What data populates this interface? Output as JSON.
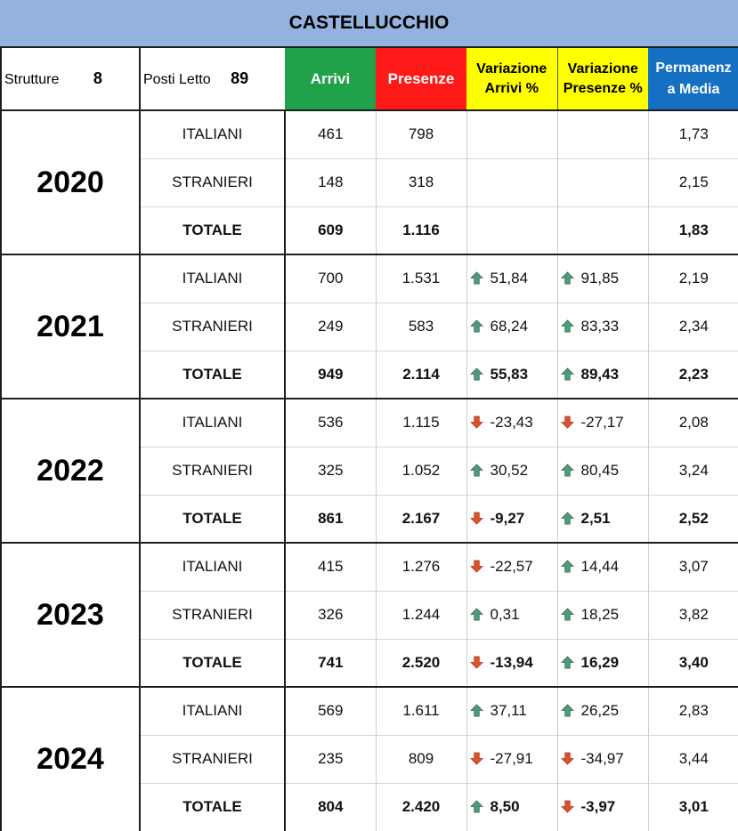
{
  "title": "CASTELLUCCHIO",
  "header": {
    "strutture_label": "Strutture",
    "strutture_value": "8",
    "posti_label": "Posti Letto",
    "posti_value": "89",
    "arrivi": "Arrivi",
    "presenze": "Presenze",
    "var_arrivi_1": "Variazione",
    "var_arrivi_2": "Arrivi %",
    "var_presenze_1": "Variazione",
    "var_presenze_2": "Presenze %",
    "perm_1": "Permanenz",
    "perm_2": "a Media"
  },
  "colors": {
    "up": "#4f9a78",
    "down": "#d9532b",
    "arrivi_bg": "#20a24a",
    "presenze_bg": "#ff1a1a",
    "variazione_bg": "#ffff00",
    "permanenza_bg": "#1570c4",
    "title_bg": "#93b3de"
  },
  "years": [
    {
      "year": "2020",
      "rows": [
        {
          "label": "ITALIANI",
          "arrivi": "461",
          "presenze": "798",
          "var_arrivi": "",
          "var_arrivi_dir": "",
          "var_presenze": "",
          "var_presenze_dir": "",
          "permanenza": "1,73"
        },
        {
          "label": "STRANIERI",
          "arrivi": "148",
          "presenze": "318",
          "var_arrivi": "",
          "var_arrivi_dir": "",
          "var_presenze": "",
          "var_presenze_dir": "",
          "permanenza": "2,15"
        },
        {
          "label": "TOTALE",
          "arrivi": "609",
          "presenze": "1.116",
          "var_arrivi": "",
          "var_arrivi_dir": "",
          "var_presenze": "",
          "var_presenze_dir": "",
          "permanenza": "1,83"
        }
      ]
    },
    {
      "year": "2021",
      "rows": [
        {
          "label": "ITALIANI",
          "arrivi": "700",
          "presenze": "1.531",
          "var_arrivi": "51,84",
          "var_arrivi_dir": "up",
          "var_presenze": "91,85",
          "var_presenze_dir": "up",
          "permanenza": "2,19"
        },
        {
          "label": "STRANIERI",
          "arrivi": "249",
          "presenze": "583",
          "var_arrivi": "68,24",
          "var_arrivi_dir": "up",
          "var_presenze": "83,33",
          "var_presenze_dir": "up",
          "permanenza": "2,34"
        },
        {
          "label": "TOTALE",
          "arrivi": "949",
          "presenze": "2.114",
          "var_arrivi": "55,83",
          "var_arrivi_dir": "up",
          "var_presenze": "89,43",
          "var_presenze_dir": "up",
          "permanenza": "2,23"
        }
      ]
    },
    {
      "year": "2022",
      "rows": [
        {
          "label": "ITALIANI",
          "arrivi": "536",
          "presenze": "1.115",
          "var_arrivi": "-23,43",
          "var_arrivi_dir": "down",
          "var_presenze": "-27,17",
          "var_presenze_dir": "down",
          "permanenza": "2,08"
        },
        {
          "label": "STRANIERI",
          "arrivi": "325",
          "presenze": "1.052",
          "var_arrivi": "30,52",
          "var_arrivi_dir": "up",
          "var_presenze": "80,45",
          "var_presenze_dir": "up",
          "permanenza": "3,24"
        },
        {
          "label": "TOTALE",
          "arrivi": "861",
          "presenze": "2.167",
          "var_arrivi": "-9,27",
          "var_arrivi_dir": "down",
          "var_presenze": "2,51",
          "var_presenze_dir": "up",
          "permanenza": "2,52"
        }
      ]
    },
    {
      "year": "2023",
      "rows": [
        {
          "label": "ITALIANI",
          "arrivi": "415",
          "presenze": "1.276",
          "var_arrivi": "-22,57",
          "var_arrivi_dir": "down",
          "var_presenze": "14,44",
          "var_presenze_dir": "up",
          "permanenza": "3,07"
        },
        {
          "label": "STRANIERI",
          "arrivi": "326",
          "presenze": "1.244",
          "var_arrivi": "0,31",
          "var_arrivi_dir": "up",
          "var_presenze": "18,25",
          "var_presenze_dir": "up",
          "permanenza": "3,82"
        },
        {
          "label": "TOTALE",
          "arrivi": "741",
          "presenze": "2.520",
          "var_arrivi": "-13,94",
          "var_arrivi_dir": "down",
          "var_presenze": "16,29",
          "var_presenze_dir": "up",
          "permanenza": "3,40"
        }
      ]
    },
    {
      "year": "2024",
      "rows": [
        {
          "label": "ITALIANI",
          "arrivi": "569",
          "presenze": "1.611",
          "var_arrivi": "37,11",
          "var_arrivi_dir": "up",
          "var_presenze": "26,25",
          "var_presenze_dir": "up",
          "permanenza": "2,83"
        },
        {
          "label": "STRANIERI",
          "arrivi": "235",
          "presenze": "809",
          "var_arrivi": "-27,91",
          "var_arrivi_dir": "down",
          "var_presenze": "-34,97",
          "var_presenze_dir": "down",
          "permanenza": "3,44"
        },
        {
          "label": "TOTALE",
          "arrivi": "804",
          "presenze": "2.420",
          "var_arrivi": "8,50",
          "var_arrivi_dir": "up",
          "var_presenze": "-3,97",
          "var_presenze_dir": "down",
          "permanenza": "3,01"
        }
      ]
    }
  ]
}
